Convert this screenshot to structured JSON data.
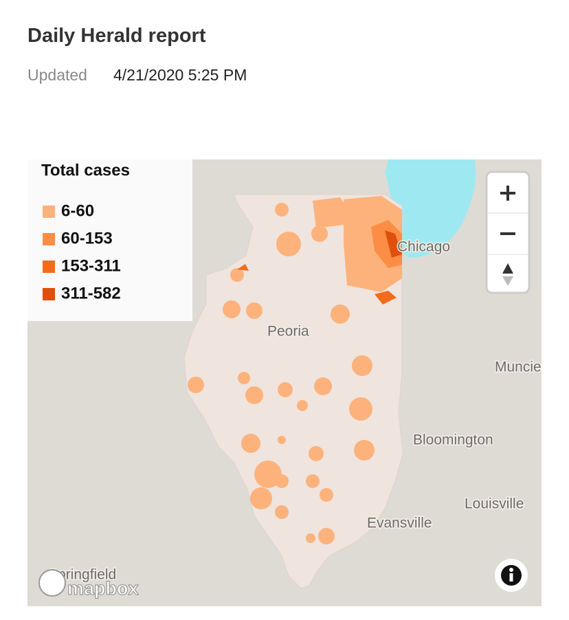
{
  "header": {
    "title": "Daily Herald report",
    "updated_label": "Updated",
    "updated_time": "4/21/2020 5:25 PM"
  },
  "legend": {
    "title": "Total cases",
    "items": [
      {
        "label": "6-60",
        "color": "#fdb27b"
      },
      {
        "label": "60-153",
        "color": "#fc8d45"
      },
      {
        "label": "153-311",
        "color": "#f46b1c"
      },
      {
        "label": "311-582",
        "color": "#e04f0c"
      }
    ]
  },
  "map": {
    "places": [
      "Chicago",
      "Peoria",
      "Muncie",
      "Bloomington",
      "Louisville",
      "Evansville",
      "Springfield"
    ],
    "attribution": "mapbox"
  }
}
